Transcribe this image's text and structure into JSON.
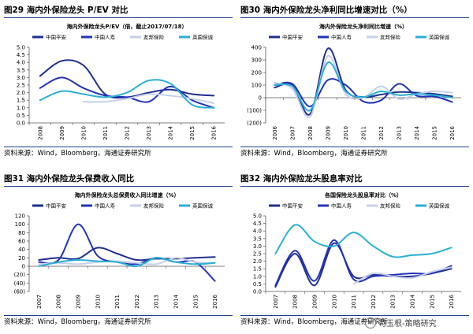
{
  "watermark": "苟玉根-策略研究",
  "colors": {
    "s1": "#1f2f8f",
    "s2": "#2333b8",
    "s3": "#c6d0ea",
    "s4": "#2ab0d4",
    "border": "#1f3f8f",
    "axis": "#555555"
  },
  "chart_data": [
    {
      "type": "line",
      "figure": "图29",
      "panel_title": "图29 海内外保险龙头 P/EV 对比",
      "title": "海内外保险龙头P/EV（倍，截止2017/07/18）",
      "source": "资料来源：Wind，Bloomberg，海通证券研究所",
      "ylim": [
        0,
        5
      ],
      "yticks": [
        "0.0",
        "0.5",
        "1.0",
        "1.5",
        "2.0",
        "2.5",
        "3.0",
        "3.5",
        "4.0",
        "4.5",
        "5.0"
      ],
      "ytick_values": [
        0,
        0.5,
        1,
        1.5,
        2,
        2.5,
        3,
        3.5,
        4,
        4.5,
        5
      ],
      "categories": [
        "2008",
        "2009",
        "2010",
        "2011",
        "2012",
        "2013",
        "2014",
        "2015",
        "2016"
      ],
      "series": [
        {
          "name": "中国平安",
          "values": [
            3.1,
            4.1,
            3.8,
            1.9,
            1.7,
            2.0,
            2.2,
            1.9,
            1.8
          ]
        },
        {
          "name": "中国人寿",
          "values": [
            2.3,
            3.0,
            2.3,
            1.8,
            1.7,
            1.4,
            2.4,
            1.5,
            1.0
          ]
        },
        {
          "name": "友邦保险",
          "values": [
            null,
            null,
            1.4,
            1.4,
            1.6,
            1.9,
            1.8,
            1.6,
            1.3
          ]
        },
        {
          "name": "英国保诚",
          "values": [
            1.5,
            2.1,
            1.9,
            1.7,
            2.0,
            2.8,
            2.6,
            1.2,
            1.0
          ]
        }
      ]
    },
    {
      "type": "line",
      "figure": "图30",
      "panel_title": "图30 海内外保险龙头净利同比增速对比（%）",
      "title": "海内外保险龙头净利同比增速（%）",
      "source": "资料来源：Wind，Bloomberg，海通证券研究所",
      "ylim": [
        -200,
        400
      ],
      "yticks": [
        "(200)",
        "(100)",
        "0",
        "100",
        "200",
        "300",
        "400"
      ],
      "ytick_values": [
        -200,
        -100,
        0,
        100,
        200,
        300,
        400
      ],
      "categories": [
        "2006",
        "2007",
        "2008",
        "2009",
        "2010",
        "2011",
        "2012",
        "2013",
        "2014",
        "2015",
        "2016"
      ],
      "series": [
        {
          "name": "中国平安",
          "values": [
            80,
            100,
            -130,
            390,
            60,
            5,
            25,
            45,
            40,
            30,
            10
          ]
        },
        {
          "name": "中国人寿",
          "values": [
            100,
            110,
            -70,
            140,
            100,
            -30,
            -20,
            110,
            15,
            10,
            -35
          ]
        },
        {
          "name": "友邦保险",
          "values": [
            120,
            70,
            -150,
            330,
            30,
            0,
            90,
            -10,
            30,
            50,
            40
          ]
        },
        {
          "name": "英国保诚",
          "values": [
            100,
            90,
            -100,
            280,
            50,
            5,
            50,
            20,
            30,
            20,
            0
          ]
        }
      ]
    },
    {
      "type": "line",
      "figure": "图31",
      "panel_title": "图31 海内外保险龙头保费收入同比",
      "title": "海内外保险龙头总保费收入同比增速（%）",
      "source": "资料来源：Wind，Bloomberg，海通证券研究所",
      "ylim": [
        -60,
        120
      ],
      "yticks": [
        "(60)",
        "(40)",
        "(20)",
        "0",
        "20",
        "40",
        "60",
        "80",
        "100",
        "120"
      ],
      "ytick_values": [
        -60,
        -40,
        -20,
        0,
        20,
        40,
        60,
        80,
        100,
        120
      ],
      "categories": [
        "2007",
        "2008",
        "2009",
        "2010",
        "2011",
        "2012",
        "2013",
        "2014",
        "2015",
        "2016"
      ],
      "series": [
        {
          "name": "中国平安",
          "values": [
            15,
            20,
            18,
            44,
            30,
            15,
            18,
            18,
            20,
            22
          ]
        },
        {
          "name": "中国人寿",
          "values": [
            10,
            15,
            100,
            25,
            10,
            5,
            20,
            10,
            10,
            -35
          ]
        },
        {
          "name": "友邦保险",
          "values": [
            5,
            8,
            5,
            10,
            12,
            8,
            5,
            20,
            10,
            8
          ]
        },
        {
          "name": "英国保诚",
          "values": [
            0,
            10,
            15,
            12,
            10,
            0,
            20,
            10,
            5,
            8
          ]
        }
      ]
    },
    {
      "type": "line",
      "figure": "图32",
      "panel_title": "图32 海内外保险龙头股息率对比",
      "title": "各国保险龙头股息率对比（%）",
      "source": "资料来源：Wind，Bloomberg，海通证券研究所",
      "ylim": [
        0,
        5
      ],
      "yticks": [
        "0.0",
        "0.5",
        "1.0",
        "1.5",
        "2.0",
        "2.5",
        "3.0",
        "3.5",
        "4.0",
        "4.5",
        "5.0"
      ],
      "ytick_values": [
        0,
        0.5,
        1,
        1.5,
        2,
        2.5,
        3,
        3.5,
        4,
        4.5,
        5
      ],
      "categories": [
        "2007",
        "2008",
        "2009",
        "2010",
        "2011",
        "2012",
        "2013",
        "2014",
        "2015",
        "2016"
      ],
      "series": [
        {
          "name": "中国平安",
          "values": [
            0.3,
            2.5,
            0.4,
            3.2,
            1.0,
            1.1,
            1.0,
            1.0,
            1.2,
            1.5
          ]
        },
        {
          "name": "中国人寿",
          "values": [
            0.4,
            2.7,
            0.7,
            3.4,
            0.8,
            1.0,
            1.1,
            1.2,
            1.2,
            1.7
          ]
        },
        {
          "name": "友邦保险",
          "values": [
            null,
            null,
            null,
            null,
            0.5,
            1.2,
            1.0,
            0.9,
            1.3,
            1.6
          ]
        },
        {
          "name": "英国保诚",
          "values": [
            2.5,
            4.4,
            3.3,
            3.0,
            3.9,
            3.0,
            2.3,
            2.4,
            2.5,
            2.9
          ]
        }
      ]
    }
  ]
}
